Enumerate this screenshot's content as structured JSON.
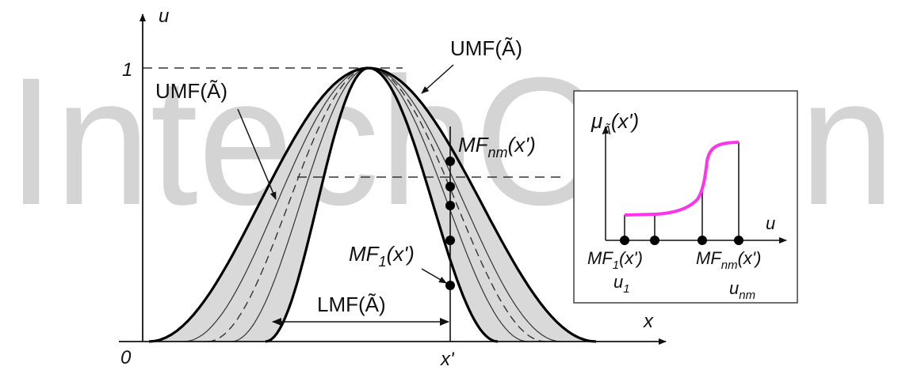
{
  "watermark": {
    "text": "IntechOpen",
    "color": "#c8c8c8"
  },
  "main_plot": {
    "y_axis_label": "u",
    "x_axis_label": "x",
    "origin_label": "0",
    "y_tick_label": "1",
    "x_point_label": "x'",
    "labels": {
      "umf_left": "UMF(Ã)",
      "umf_right": "UMF(Ã)",
      "lmf": "LMF(Ã)",
      "mf_nm": "MF",
      "mf_nm_sub": "nm",
      "mf_nm_arg": "(x')",
      "mf_1": "MF",
      "mf_1_sub": "1",
      "mf_1_arg": "(x')"
    },
    "fill_color": "#d9d9d9"
  },
  "inset": {
    "y_label": "μ",
    "y_label_sub": "Ã",
    "y_label_arg": "(x')",
    "x_label": "u",
    "points": [
      {
        "label": "MF",
        "sub": "1",
        "arg": "(x')",
        "u_label": "u",
        "u_sub": "1"
      },
      {
        "label": "MF",
        "sub": "nm",
        "arg": "(x')",
        "u_label": "u",
        "u_sub": "nm"
      }
    ],
    "curve_color": "#ff33ee"
  }
}
